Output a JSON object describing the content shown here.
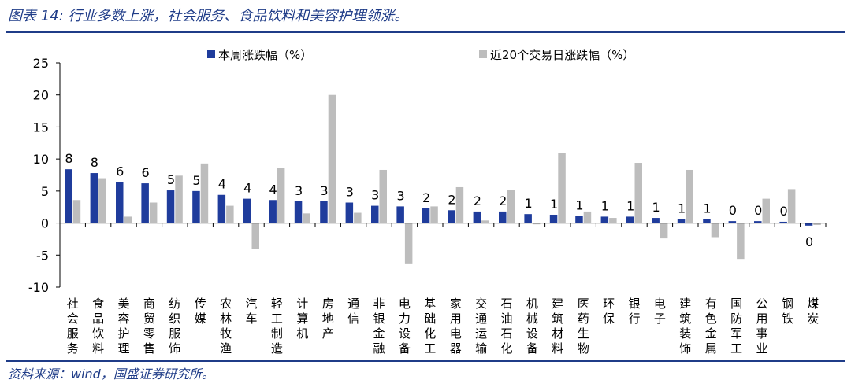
{
  "figure": {
    "title": "图表 14:  行业多数上涨，社会服务、食品饮料和美容护理领涨。",
    "source": "资料来源：wind，国盛证券研究所。"
  },
  "colors": {
    "weekly": "#1f3c9c",
    "twenty_day": "#bdbdbd",
    "accent": "#1f3c88"
  },
  "chart_data": {
    "type": "bar",
    "title": "",
    "xlabel": "",
    "ylabel": "",
    "ylim": [
      -10,
      25
    ],
    "yticks": [
      -10,
      -5,
      0,
      5,
      10,
      15,
      20,
      25
    ],
    "grid": false,
    "legend": "top-center",
    "categories": [
      "社会服务",
      "食品饮料",
      "美容护理",
      "商贸零售",
      "纺织服饰",
      "传媒",
      "农林牧渔",
      "汽车",
      "轻工制造",
      "计算机",
      "房地产",
      "通信",
      "非银金融",
      "电力设备",
      "基础化工",
      "家用电器",
      "交通运输",
      "石油石化",
      "机械设备",
      "建筑材料",
      "医药生物",
      "环保",
      "银行",
      "电子",
      "建筑装饰",
      "有色金属",
      "国防军工",
      "公用事业",
      "钢铁",
      "煤炭"
    ],
    "series": [
      {
        "name": "本周涨跌幅（%）",
        "color": "#1f3c9c",
        "values": [
          8.4,
          7.8,
          6.4,
          6.2,
          5.1,
          5.0,
          4.4,
          3.8,
          3.6,
          3.4,
          3.4,
          3.2,
          2.7,
          2.6,
          2.3,
          2.0,
          1.8,
          1.8,
          1.4,
          1.3,
          1.1,
          1.0,
          1.0,
          0.8,
          0.6,
          0.6,
          0.3,
          0.3,
          0.2,
          -0.4
        ],
        "data_labels": [
          "8",
          "8",
          "6",
          "6",
          "5",
          "5",
          "4",
          "4",
          "4",
          "3",
          "3",
          "3",
          "3",
          "3",
          "2",
          "2",
          "2",
          "2",
          "1",
          "1",
          "1",
          "1",
          "1",
          "1",
          "1",
          "1",
          "0",
          "0",
          "0",
          "0"
        ]
      },
      {
        "name": "近20个交易日涨跌幅（%）",
        "color": "#bdbdbd",
        "values": [
          3.6,
          7.0,
          1.0,
          3.2,
          7.4,
          9.3,
          2.7,
          -4.0,
          8.6,
          1.5,
          20.0,
          1.6,
          8.3,
          -6.3,
          2.6,
          5.6,
          0.4,
          5.2,
          -0.2,
          10.9,
          1.8,
          0.8,
          9.4,
          -2.4,
          8.3,
          -2.2,
          -5.6,
          3.8,
          5.3,
          -0.3
        ]
      }
    ]
  }
}
